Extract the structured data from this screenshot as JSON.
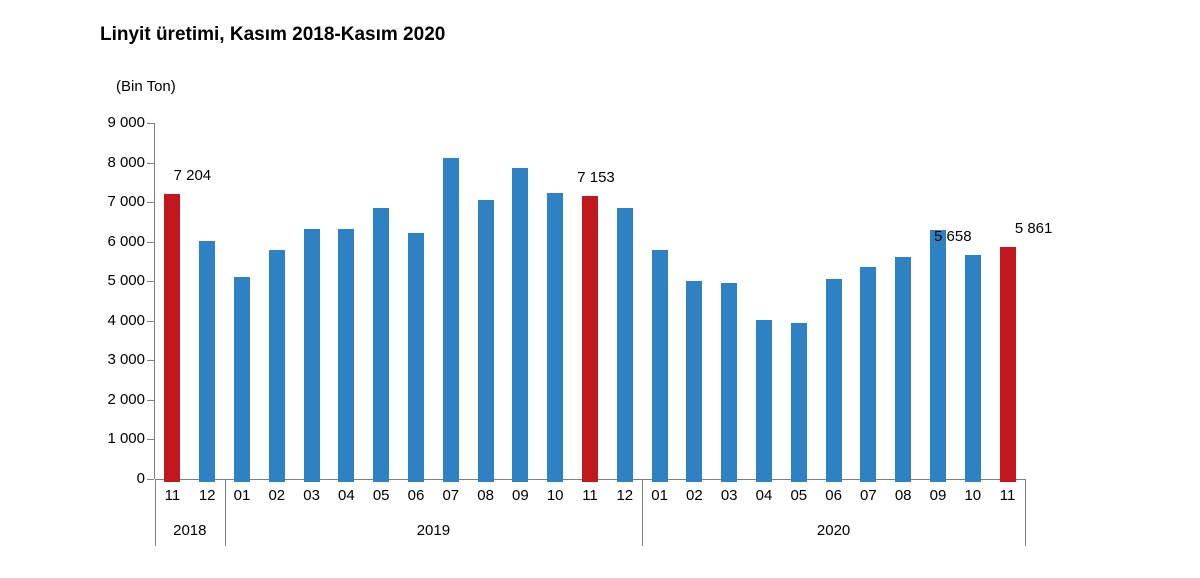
{
  "chart_data": {
    "type": "bar",
    "title": "Linyit üretimi, Kasım 2018-Kasım 2020",
    "ylabel": "(Bin Ton)",
    "xlabel": "",
    "ylim": [
      0,
      9000
    ],
    "ytick_step": 1000,
    "grid": false,
    "legend": false,
    "colors": {
      "bar_default": "#2E82C4",
      "bar_highlight": "#C0181D",
      "axis": "#808080",
      "text": "#000000"
    },
    "yaxis_ticks": [
      {
        "value": 9000,
        "label": "9 000"
      },
      {
        "value": 8000,
        "label": "8 000"
      },
      {
        "value": 7000,
        "label": "7 000"
      },
      {
        "value": 6000,
        "label": "6 000"
      },
      {
        "value": 5000,
        "label": "5 000"
      },
      {
        "value": 4000,
        "label": "4 000"
      },
      {
        "value": 3000,
        "label": "3 000"
      },
      {
        "value": 2000,
        "label": "2 000"
      },
      {
        "value": 1000,
        "label": "1 000"
      },
      {
        "value": 0,
        "label": "0"
      }
    ],
    "groups": [
      {
        "year": "2018",
        "count": 2
      },
      {
        "year": "2019",
        "count": 12
      },
      {
        "year": "2020",
        "count": 11
      }
    ],
    "bars": [
      {
        "year": "2018",
        "month": "11",
        "value": 7204,
        "highlight": true,
        "label": "7 204",
        "label_dx": 20
      },
      {
        "year": "2018",
        "month": "12",
        "value": 6010,
        "highlight": false
      },
      {
        "year": "2019",
        "month": "01",
        "value": 5110,
        "highlight": false
      },
      {
        "year": "2019",
        "month": "02",
        "value": 5800,
        "highlight": false
      },
      {
        "year": "2019",
        "month": "03",
        "value": 6310,
        "highlight": false
      },
      {
        "year": "2019",
        "month": "04",
        "value": 6310,
        "highlight": false
      },
      {
        "year": "2019",
        "month": "05",
        "value": 6840,
        "highlight": false
      },
      {
        "year": "2019",
        "month": "06",
        "value": 6220,
        "highlight": false
      },
      {
        "year": "2019",
        "month": "07",
        "value": 8120,
        "highlight": false
      },
      {
        "year": "2019",
        "month": "08",
        "value": 7050,
        "highlight": false
      },
      {
        "year": "2019",
        "month": "09",
        "value": 7870,
        "highlight": false
      },
      {
        "year": "2019",
        "month": "10",
        "value": 7220,
        "highlight": false
      },
      {
        "year": "2019",
        "month": "11",
        "value": 7153,
        "highlight": true,
        "label": "7 153",
        "label_dx": 6
      },
      {
        "year": "2019",
        "month": "12",
        "value": 6840,
        "highlight": false
      },
      {
        "year": "2020",
        "month": "01",
        "value": 5790,
        "highlight": false
      },
      {
        "year": "2020",
        "month": "02",
        "value": 5010,
        "highlight": false
      },
      {
        "year": "2020",
        "month": "03",
        "value": 4960,
        "highlight": false
      },
      {
        "year": "2020",
        "month": "04",
        "value": 4030,
        "highlight": false
      },
      {
        "year": "2020",
        "month": "05",
        "value": 3940,
        "highlight": false
      },
      {
        "year": "2020",
        "month": "06",
        "value": 5060,
        "highlight": false
      },
      {
        "year": "2020",
        "month": "07",
        "value": 5360,
        "highlight": false
      },
      {
        "year": "2020",
        "month": "08",
        "value": 5620,
        "highlight": false
      },
      {
        "year": "2020",
        "month": "09",
        "value": 6300,
        "highlight": false
      },
      {
        "year": "2020",
        "month": "10",
        "value": 5658,
        "highlight": false,
        "label": "5 658",
        "label_dx": -20
      },
      {
        "year": "2020",
        "month": "11",
        "value": 5861,
        "highlight": true,
        "label": "5 861",
        "label_dx": 26
      }
    ]
  }
}
